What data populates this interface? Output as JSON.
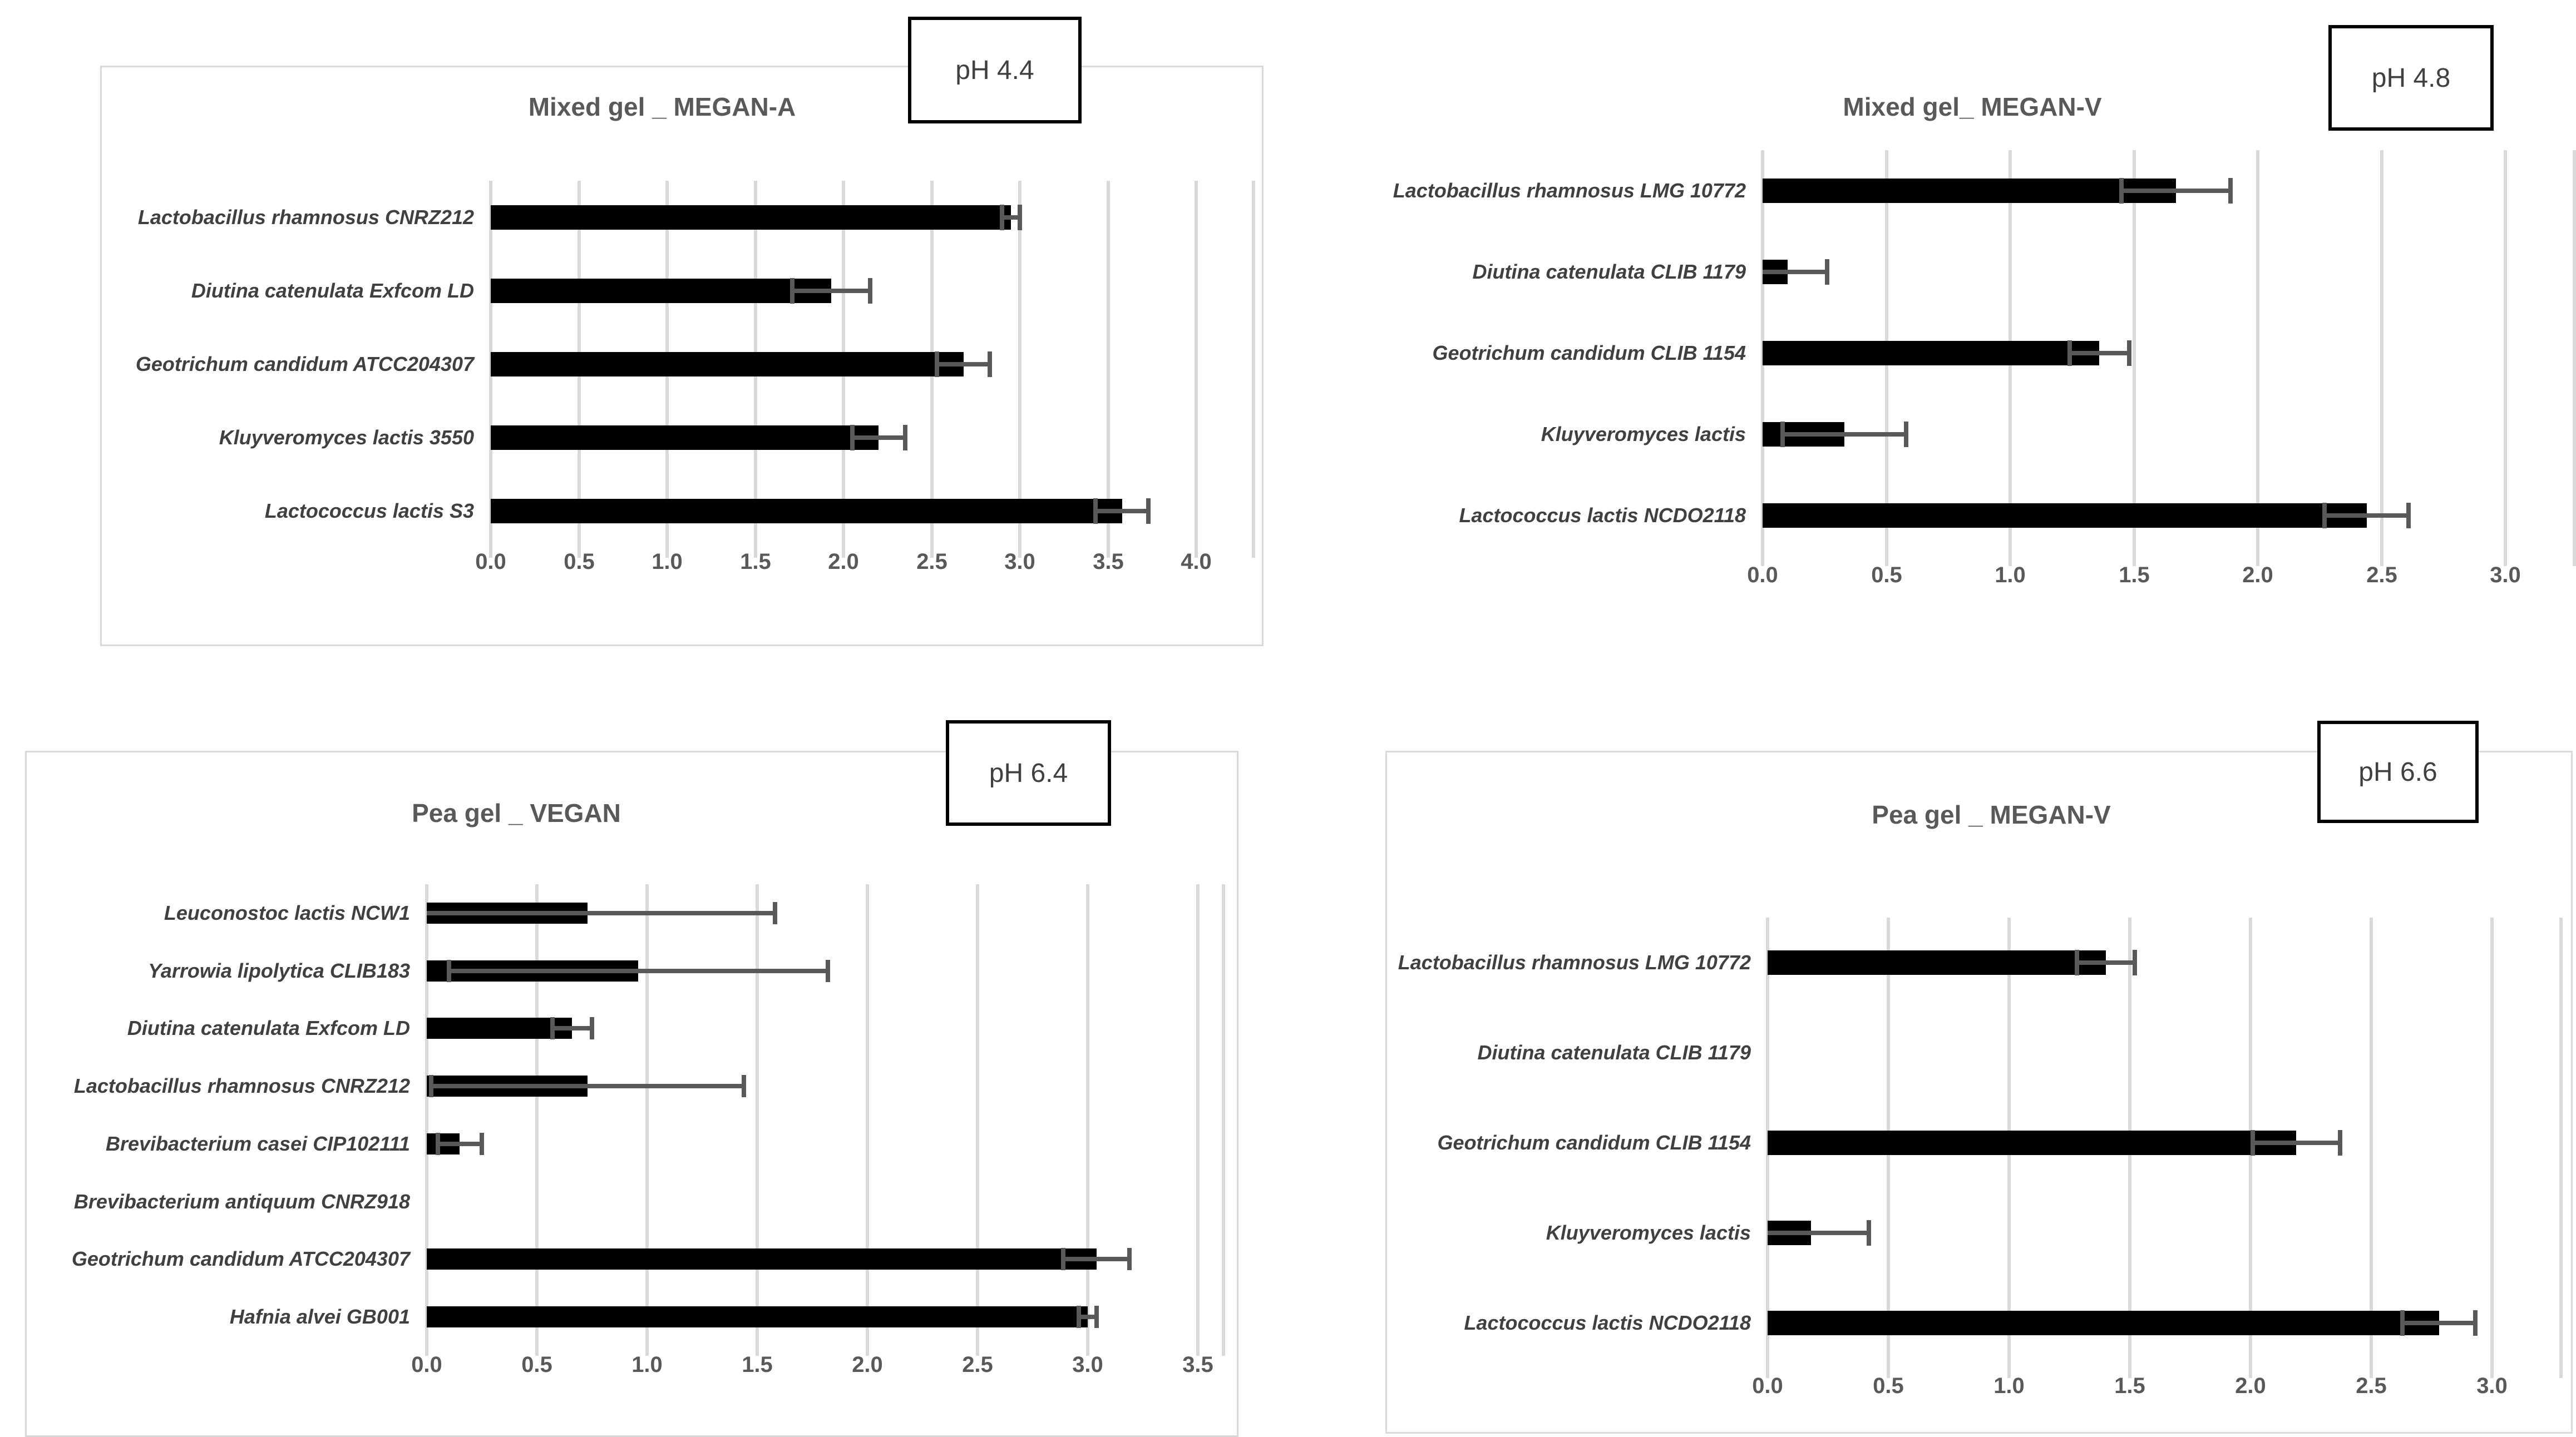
{
  "figure_title": "Four-panel horizontal bar charts of microbial strains in gels at different pH",
  "colors": {
    "bar": "#000000",
    "error_bar": "#595959",
    "gridline": "#d9d9d9",
    "title_text": "#595959",
    "tick_text": "#595959",
    "label_text": "#404040",
    "panel_border": "#d9d9d9",
    "ph_box_border": "#000000",
    "background": "#ffffff"
  },
  "chart_data": [
    {
      "type": "bar",
      "orientation": "horizontal",
      "title": "Mixed gel _ MEGAN-A",
      "ph_label": "pH 4.4",
      "xlabel": "",
      "ylabel": "",
      "xlim": [
        0,
        4.0
      ],
      "grid": true,
      "x_ticks": [
        "0.0",
        "0.5",
        "1.0",
        "1.5",
        "2.0",
        "2.5",
        "3.0",
        "3.5",
        "4.0"
      ],
      "categories": [
        "Lactobacillus rhamnosus CNRZ212",
        "Diutina catenulata Exfcom LD",
        "Geotrichum candidum ATCC204307",
        "Kluyveromyces lactis 3550",
        "Lactococcus lactis S3"
      ],
      "values": [
        2.95,
        1.93,
        2.68,
        2.2,
        3.58
      ],
      "errors": [
        0.05,
        0.22,
        0.15,
        0.15,
        0.15
      ]
    },
    {
      "type": "bar",
      "orientation": "horizontal",
      "title": "Mixed gel_ MEGAN-V",
      "ph_label": "pH 4.8",
      "xlabel": "",
      "ylabel": "",
      "xlim": [
        0,
        3.0
      ],
      "grid": true,
      "x_ticks": [
        "0.0",
        "0.5",
        "1.0",
        "1.5",
        "2.0",
        "2.5",
        "3.0"
      ],
      "categories": [
        "Lactobacillus rhamnosus LMG 10772",
        "Diutina catenulata CLIB 1179",
        "Geotrichum candidum CLIB 1154",
        "Kluyveromyces lactis",
        "Lactococcus lactis NCDO2118"
      ],
      "values": [
        1.67,
        0.1,
        1.36,
        0.33,
        2.44
      ],
      "errors": [
        0.22,
        0.16,
        0.12,
        0.25,
        0.17
      ]
    },
    {
      "type": "bar",
      "orientation": "horizontal",
      "title": "Pea gel _ VEGAN",
      "ph_label": "pH 6.4",
      "xlabel": "",
      "ylabel": "",
      "xlim": [
        0,
        3.5
      ],
      "grid": true,
      "x_ticks": [
        "0.0",
        "0.5",
        "1.0",
        "1.5",
        "2.0",
        "2.5",
        "3.0",
        "3.5"
      ],
      "categories": [
        "Leuconostoc lactis NCW1",
        "Yarrowia lipolytica CLIB183",
        "Diutina catenulata Exfcom LD",
        "Lactobacillus rhamnosus CNRZ212",
        "Brevibacterium casei CIP102111",
        "Brevibacterium antiquum CNRZ918",
        "Geotrichum candidum ATCC204307",
        "Hafnia alvei GB001"
      ],
      "values": [
        0.73,
        0.96,
        0.66,
        0.73,
        0.15,
        0,
        3.04,
        3.0
      ],
      "errors": [
        0.85,
        0.86,
        0.09,
        0.71,
        0.1,
        0,
        0.15,
        0.04
      ]
    },
    {
      "type": "bar",
      "orientation": "horizontal",
      "title": "Pea gel _ MEGAN-V",
      "ph_label": "pH 6.6",
      "xlabel": "",
      "ylabel": "",
      "xlim": [
        0,
        3.0
      ],
      "grid": true,
      "x_ticks": [
        "0.0",
        "0.5",
        "1.0",
        "1.5",
        "2.0",
        "2.5",
        "3.0"
      ],
      "categories": [
        "Lactobacillus rhamnosus LMG 10772",
        "Diutina catenulata CLIB 1179",
        "Geotrichum candidum CLIB 1154",
        "Kluyveromyces lactis",
        "Lactococcus lactis NCDO2118"
      ],
      "values": [
        1.4,
        0,
        2.19,
        0.18,
        2.78
      ],
      "errors": [
        0.12,
        0,
        0.18,
        0.24,
        0.15
      ]
    }
  ]
}
